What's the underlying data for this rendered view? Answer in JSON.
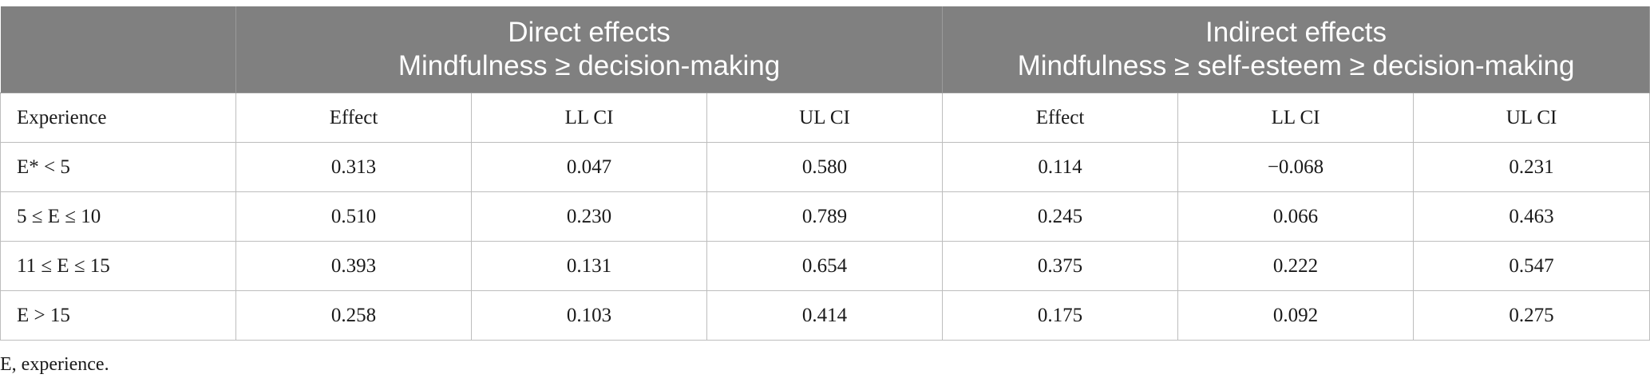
{
  "table": {
    "group_headers": [
      {
        "line1": "",
        "line2": ""
      },
      {
        "line1": "Direct effects",
        "line2": "Mindfulness ≥ decision-making"
      },
      {
        "line1": "Indirect effects",
        "line2": "Mindfulness ≥ self-esteem ≥ decision-making"
      }
    ],
    "subheaders": [
      "Experience",
      "Effect",
      "LL CI",
      "UL CI",
      "Effect",
      "LL CI",
      "UL CI"
    ],
    "rows": [
      [
        "E* < 5",
        "0.313",
        "0.047",
        "0.580",
        "0.114",
        "−0.068",
        "0.231"
      ],
      [
        "5 ≤ E ≤ 10",
        "0.510",
        "0.230",
        "0.789",
        "0.245",
        "0.066",
        "0.463"
      ],
      [
        "11 ≤ E ≤ 15",
        "0.393",
        "0.131",
        "0.654",
        "0.375",
        "0.222",
        "0.547"
      ],
      [
        "E > 15",
        "0.258",
        "0.103",
        "0.414",
        "0.175",
        "0.092",
        "0.275"
      ]
    ]
  },
  "footnote": "E, experience.",
  "colors": {
    "header_background": "#808080",
    "header_text": "#ffffff",
    "grid": "#bdbdbd"
  }
}
